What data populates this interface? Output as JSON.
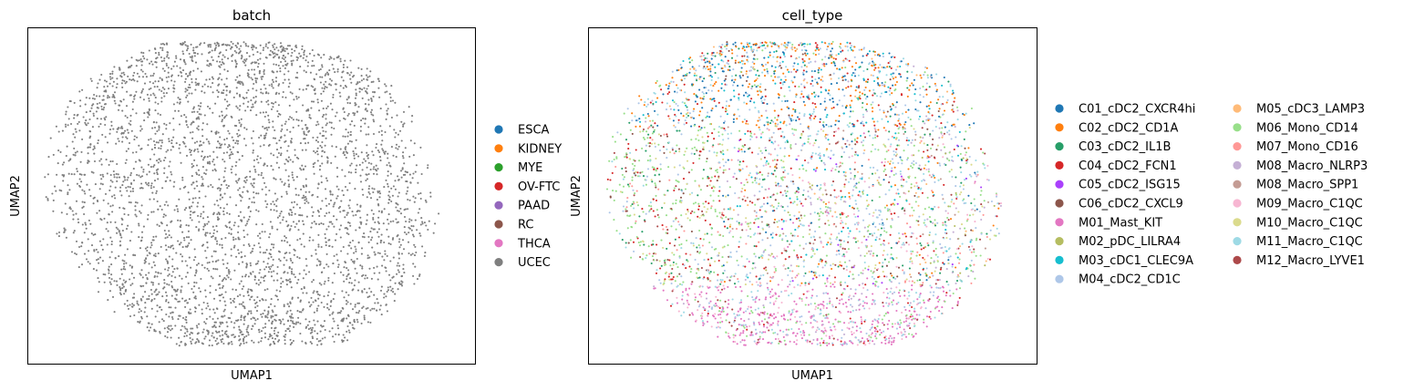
{
  "colors": {
    "batch_point": "#7f7f7f",
    "axes_frame": "#000000",
    "background": "#ffffff"
  },
  "chart_data": [
    {
      "type": "scatter",
      "title": "batch",
      "xlabel": "UMAP1",
      "ylabel": "UMAP2",
      "grid": false,
      "legend_placement": "right",
      "legend": [
        {
          "name": "ESCA",
          "color": "#1f77b4"
        },
        {
          "name": "KIDNEY",
          "color": "#ff7f0e"
        },
        {
          "name": "MYE",
          "color": "#2ca02c"
        },
        {
          "name": "OV-FTC",
          "color": "#d62728"
        },
        {
          "name": "PAAD",
          "color": "#9467bd"
        },
        {
          "name": "RC",
          "color": "#8c564b"
        },
        {
          "name": "THCA",
          "color": "#e377c2"
        },
        {
          "name": "UCEC",
          "color": "#7f7f7f"
        }
      ],
      "visible_series": "UCEC"
    },
    {
      "type": "scatter",
      "title": "cell_type",
      "xlabel": "UMAP1",
      "ylabel": "UMAP2",
      "grid": false,
      "legend_placement": "right",
      "legend_columns": 2,
      "legend": [
        {
          "name": "C01_cDC2_CXCR4hi",
          "color": "#1f77b4"
        },
        {
          "name": "C02_cDC2_CD1A",
          "color": "#ff7f0e"
        },
        {
          "name": "C03_cDC2_IL1B",
          "color": "#279e68"
        },
        {
          "name": "C04_cDC2_FCN1",
          "color": "#d62728"
        },
        {
          "name": "C05_cDC2_ISG15",
          "color": "#aa40fc"
        },
        {
          "name": "C06_cDC2_CXCL9",
          "color": "#8c564b"
        },
        {
          "name": "M01_Mast_KIT",
          "color": "#e377c2"
        },
        {
          "name": "M02_pDC_LILRA4",
          "color": "#b5bd61"
        },
        {
          "name": "M03_cDC1_CLEC9A",
          "color": "#17becf"
        },
        {
          "name": "M04_cDC2_CD1C",
          "color": "#aec7e8"
        },
        {
          "name": "M05_cDC3_LAMP3",
          "color": "#ffbb78"
        },
        {
          "name": "M06_Mono_CD14",
          "color": "#98df8a"
        },
        {
          "name": "M07_Mono_CD16",
          "color": "#ff9896"
        },
        {
          "name": "M08_Macro_NLRP3",
          "color": "#c5b0d5"
        },
        {
          "name": "M08_Macro_SPP1",
          "color": "#c49c94"
        },
        {
          "name": "M09_Macro_C1QC",
          "color": "#f7b6d2"
        },
        {
          "name": "M10_Macro_C1QC",
          "color": "#dbdb8d"
        },
        {
          "name": "M11_Macro_C1QC",
          "color": "#9edae5"
        },
        {
          "name": "M12_Macro_LYVE1",
          "color": "#ad494a"
        }
      ]
    }
  ]
}
